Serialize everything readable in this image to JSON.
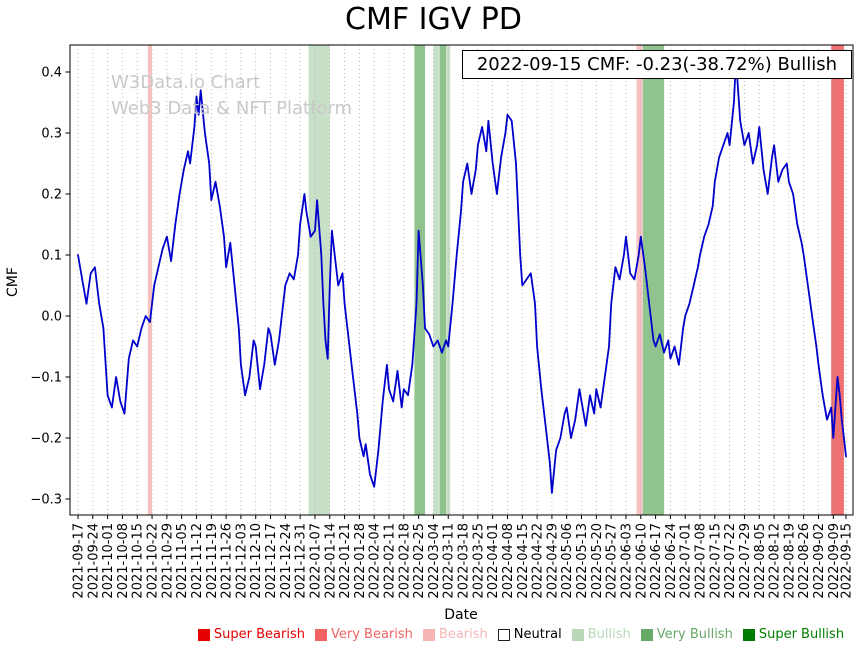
{
  "watermark": {
    "line1": "W3Data.io Chart",
    "line2": "Web3 Data & NFT Platform"
  },
  "chart_data": {
    "type": "line",
    "title": "CMF IGV PD",
    "xlabel": "Date",
    "ylabel": "CMF",
    "annotation": "2022-09-15 CMF: -0.23(-38.72%) Bullish",
    "ylim": [
      -0.326,
      0.444
    ],
    "yticks": [
      0.4,
      0.3,
      0.2,
      0.1,
      0.0,
      -0.1,
      -0.2,
      -0.3
    ],
    "grid": "vertical-dotted",
    "line_color": "#0000cc",
    "x_unit": "days since 2021-09-17",
    "x_tick_labels": [
      "2021-09-17",
      "2021-09-24",
      "2021-10-01",
      "2021-10-08",
      "2021-10-15",
      "2021-10-22",
      "2021-10-29",
      "2021-11-05",
      "2021-11-12",
      "2021-11-19",
      "2021-11-26",
      "2021-12-03",
      "2021-12-10",
      "2021-12-17",
      "2021-12-24",
      "2021-12-31",
      "2022-01-07",
      "2022-01-14",
      "2022-01-21",
      "2022-01-28",
      "2022-02-04",
      "2022-02-11",
      "2022-02-18",
      "2022-02-25",
      "2022-03-04",
      "2022-03-11",
      "2022-03-18",
      "2022-03-25",
      "2022-04-01",
      "2022-04-08",
      "2022-04-15",
      "2022-04-22",
      "2022-04-29",
      "2022-05-06",
      "2022-05-13",
      "2022-05-20",
      "2022-05-27",
      "2022-06-03",
      "2022-06-10",
      "2022-06-17",
      "2022-06-24",
      "2022-07-01",
      "2022-07-08",
      "2022-07-15",
      "2022-07-22",
      "2022-07-29",
      "2022-08-05",
      "2022-08-12",
      "2022-08-19",
      "2022-08-26",
      "2022-09-02",
      "2022-09-09",
      "2022-09-15"
    ],
    "series": [
      {
        "name": "CMF",
        "points": [
          [
            0,
            0.1
          ],
          [
            2,
            0.06
          ],
          [
            4,
            0.02
          ],
          [
            6,
            0.07
          ],
          [
            8,
            0.08
          ],
          [
            10,
            0.02
          ],
          [
            12,
            -0.02
          ],
          [
            14,
            -0.13
          ],
          [
            16,
            -0.15
          ],
          [
            18,
            -0.1
          ],
          [
            20,
            -0.14
          ],
          [
            22,
            -0.16
          ],
          [
            24,
            -0.07
          ],
          [
            26,
            -0.04
          ],
          [
            28,
            -0.05
          ],
          [
            30,
            -0.02
          ],
          [
            32,
            0.0
          ],
          [
            34,
            -0.01
          ],
          [
            36,
            0.05
          ],
          [
            38,
            0.08
          ],
          [
            40,
            0.11
          ],
          [
            42,
            0.13
          ],
          [
            44,
            0.09
          ],
          [
            46,
            0.15
          ],
          [
            48,
            0.2
          ],
          [
            50,
            0.24
          ],
          [
            52,
            0.27
          ],
          [
            53,
            0.25
          ],
          [
            55,
            0.31
          ],
          [
            56,
            0.36
          ],
          [
            57,
            0.33
          ],
          [
            58,
            0.37
          ],
          [
            60,
            0.3
          ],
          [
            62,
            0.25
          ],
          [
            63,
            0.19
          ],
          [
            65,
            0.22
          ],
          [
            67,
            0.18
          ],
          [
            69,
            0.13
          ],
          [
            70,
            0.08
          ],
          [
            72,
            0.12
          ],
          [
            74,
            0.05
          ],
          [
            76,
            -0.02
          ],
          [
            77,
            -0.08
          ],
          [
            79,
            -0.13
          ],
          [
            81,
            -0.1
          ],
          [
            83,
            -0.04
          ],
          [
            84,
            -0.05
          ],
          [
            86,
            -0.12
          ],
          [
            88,
            -0.08
          ],
          [
            90,
            -0.02
          ],
          [
            91,
            -0.03
          ],
          [
            93,
            -0.08
          ],
          [
            95,
            -0.04
          ],
          [
            97,
            0.02
          ],
          [
            98,
            0.05
          ],
          [
            100,
            0.07
          ],
          [
            102,
            0.06
          ],
          [
            104,
            0.1
          ],
          [
            105,
            0.15
          ],
          [
            107,
            0.2
          ],
          [
            108,
            0.17
          ],
          [
            110,
            0.13
          ],
          [
            112,
            0.14
          ],
          [
            113,
            0.19
          ],
          [
            115,
            0.1
          ],
          [
            116,
            0.02
          ],
          [
            117,
            -0.04
          ],
          [
            118,
            -0.07
          ],
          [
            119,
            0.05
          ],
          [
            120,
            0.14
          ],
          [
            122,
            0.08
          ],
          [
            123,
            0.05
          ],
          [
            125,
            0.07
          ],
          [
            126,
            0.02
          ],
          [
            128,
            -0.04
          ],
          [
            130,
            -0.1
          ],
          [
            132,
            -0.16
          ],
          [
            133,
            -0.2
          ],
          [
            135,
            -0.23
          ],
          [
            136,
            -0.21
          ],
          [
            138,
            -0.26
          ],
          [
            140,
            -0.28
          ],
          [
            142,
            -0.22
          ],
          [
            144,
            -0.14
          ],
          [
            146,
            -0.08
          ],
          [
            147,
            -0.12
          ],
          [
            149,
            -0.14
          ],
          [
            151,
            -0.09
          ],
          [
            153,
            -0.15
          ],
          [
            154,
            -0.12
          ],
          [
            156,
            -0.13
          ],
          [
            158,
            -0.08
          ],
          [
            160,
            0.02
          ],
          [
            161,
            0.14
          ],
          [
            163,
            0.05
          ],
          [
            164,
            -0.02
          ],
          [
            166,
            -0.03
          ],
          [
            168,
            -0.05
          ],
          [
            170,
            -0.04
          ],
          [
            172,
            -0.06
          ],
          [
            174,
            -0.04
          ],
          [
            175,
            -0.05
          ],
          [
            177,
            0.02
          ],
          [
            179,
            0.1
          ],
          [
            181,
            0.17
          ],
          [
            182,
            0.22
          ],
          [
            184,
            0.25
          ],
          [
            186,
            0.2
          ],
          [
            188,
            0.24
          ],
          [
            189,
            0.28
          ],
          [
            191,
            0.31
          ],
          [
            193,
            0.27
          ],
          [
            194,
            0.32
          ],
          [
            196,
            0.25
          ],
          [
            198,
            0.2
          ],
          [
            200,
            0.26
          ],
          [
            202,
            0.3
          ],
          [
            203,
            0.33
          ],
          [
            205,
            0.32
          ],
          [
            207,
            0.25
          ],
          [
            209,
            0.1
          ],
          [
            210,
            0.05
          ],
          [
            212,
            0.06
          ],
          [
            214,
            0.07
          ],
          [
            216,
            0.02
          ],
          [
            217,
            -0.05
          ],
          [
            219,
            -0.12
          ],
          [
            221,
            -0.18
          ],
          [
            223,
            -0.24
          ],
          [
            224,
            -0.29
          ],
          [
            226,
            -0.22
          ],
          [
            228,
            -0.2
          ],
          [
            230,
            -0.16
          ],
          [
            231,
            -0.15
          ],
          [
            233,
            -0.2
          ],
          [
            235,
            -0.17
          ],
          [
            237,
            -0.12
          ],
          [
            238,
            -0.14
          ],
          [
            240,
            -0.18
          ],
          [
            242,
            -0.13
          ],
          [
            244,
            -0.16
          ],
          [
            245,
            -0.12
          ],
          [
            247,
            -0.15
          ],
          [
            249,
            -0.1
          ],
          [
            251,
            -0.05
          ],
          [
            252,
            0.02
          ],
          [
            254,
            0.08
          ],
          [
            256,
            0.06
          ],
          [
            258,
            0.1
          ],
          [
            259,
            0.13
          ],
          [
            261,
            0.07
          ],
          [
            263,
            0.06
          ],
          [
            265,
            0.1
          ],
          [
            266,
            0.13
          ],
          [
            268,
            0.08
          ],
          [
            270,
            0.02
          ],
          [
            272,
            -0.04
          ],
          [
            273,
            -0.05
          ],
          [
            275,
            -0.03
          ],
          [
            277,
            -0.06
          ],
          [
            279,
            -0.04
          ],
          [
            280,
            -0.07
          ],
          [
            282,
            -0.05
          ],
          [
            284,
            -0.08
          ],
          [
            286,
            -0.02
          ],
          [
            287,
            0.0
          ],
          [
            289,
            0.02
          ],
          [
            291,
            0.05
          ],
          [
            293,
            0.08
          ],
          [
            294,
            0.1
          ],
          [
            296,
            0.13
          ],
          [
            298,
            0.15
          ],
          [
            300,
            0.18
          ],
          [
            301,
            0.22
          ],
          [
            303,
            0.26
          ],
          [
            305,
            0.28
          ],
          [
            307,
            0.3
          ],
          [
            308,
            0.28
          ],
          [
            310,
            0.35
          ],
          [
            311,
            0.42
          ],
          [
            313,
            0.32
          ],
          [
            315,
            0.28
          ],
          [
            317,
            0.3
          ],
          [
            319,
            0.25
          ],
          [
            321,
            0.28
          ],
          [
            322,
            0.31
          ],
          [
            324,
            0.24
          ],
          [
            326,
            0.2
          ],
          [
            328,
            0.26
          ],
          [
            329,
            0.28
          ],
          [
            331,
            0.22
          ],
          [
            333,
            0.24
          ],
          [
            335,
            0.25
          ],
          [
            336,
            0.22
          ],
          [
            338,
            0.2
          ],
          [
            340,
            0.15
          ],
          [
            342,
            0.12
          ],
          [
            343,
            0.1
          ],
          [
            345,
            0.05
          ],
          [
            347,
            0.0
          ],
          [
            349,
            -0.05
          ],
          [
            350,
            -0.08
          ],
          [
            352,
            -0.13
          ],
          [
            354,
            -0.17
          ],
          [
            356,
            -0.15
          ],
          [
            357,
            -0.2
          ],
          [
            359,
            -0.1
          ],
          [
            360,
            -0.13
          ],
          [
            361,
            -0.17
          ],
          [
            362,
            -0.2
          ],
          [
            363,
            -0.23
          ]
        ]
      }
    ],
    "bands": [
      {
        "from": "2021-10-20",
        "to": "2021-10-22",
        "type": "bearish"
      },
      {
        "from": "2022-01-04",
        "to": "2022-01-14",
        "type": "bullish"
      },
      {
        "from": "2022-02-23",
        "to": "2022-02-28",
        "type": "very_bullish"
      },
      {
        "from": "2022-03-04",
        "to": "2022-03-07",
        "type": "bullish"
      },
      {
        "from": "2022-03-07",
        "to": "2022-03-10",
        "type": "very_bullish"
      },
      {
        "from": "2022-03-10",
        "to": "2022-03-12",
        "type": "bullish"
      },
      {
        "from": "2022-06-08",
        "to": "2022-06-11",
        "type": "bearish"
      },
      {
        "from": "2022-06-11",
        "to": "2022-06-21",
        "type": "very_bullish"
      },
      {
        "from": "2022-09-08",
        "to": "2022-09-14",
        "type": "very_bearish"
      }
    ],
    "band_colors": {
      "bearish": "#f6c3c3",
      "very_bearish": "#ee7070",
      "bullish": "#c8e0c8",
      "very_bullish": "#8fc48f"
    },
    "legend_position": "bottom",
    "legend_items": [
      {
        "label": "Super Bearish",
        "color": "#e60000",
        "text_color": "#e60000"
      },
      {
        "label": "Very Bearish",
        "color": "#f16262",
        "text_color": "#f16262"
      },
      {
        "label": "Bearish",
        "color": "#f7b6b6",
        "text_color": "#f7b6b6"
      },
      {
        "label": "Neutral",
        "color": "#ffffff",
        "text_color": "#000000"
      },
      {
        "label": "Bullish",
        "color": "#b8d8b8",
        "text_color": "#b8d8b8"
      },
      {
        "label": "Very Bullish",
        "color": "#67a967",
        "text_color": "#67a967"
      },
      {
        "label": "Super Bullish",
        "color": "#007d00",
        "text_color": "#007d00"
      }
    ]
  }
}
